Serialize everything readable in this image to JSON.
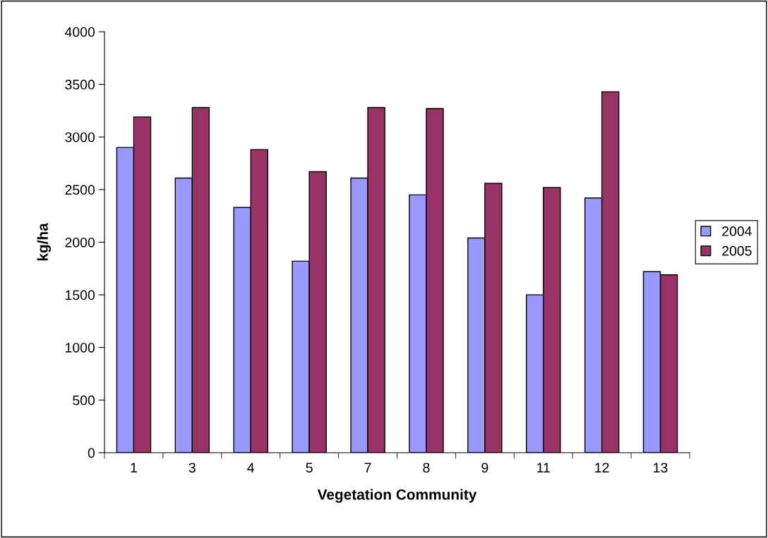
{
  "chart_data": {
    "type": "bar",
    "xlabel": "Vegetation Community",
    "ylabel": "kg/ha",
    "categories": [
      "1",
      "3",
      "4",
      "5",
      "7",
      "8",
      "9",
      "11",
      "12",
      "13"
    ],
    "series": [
      {
        "name": "2004",
        "color": "#9999ff",
        "values": [
          2900,
          2610,
          2330,
          1820,
          2610,
          2450,
          2040,
          1500,
          2420,
          1720
        ]
      },
      {
        "name": "2005",
        "color": "#993366",
        "values": [
          3190,
          3280,
          2880,
          2670,
          3280,
          3270,
          2560,
          2520,
          3430,
          1690
        ]
      }
    ],
    "ylim": [
      0,
      4000
    ],
    "yticks": [
      0,
      500,
      1000,
      1500,
      2000,
      2500,
      3000,
      3500,
      4000
    ],
    "grid": false,
    "legend": "right"
  }
}
